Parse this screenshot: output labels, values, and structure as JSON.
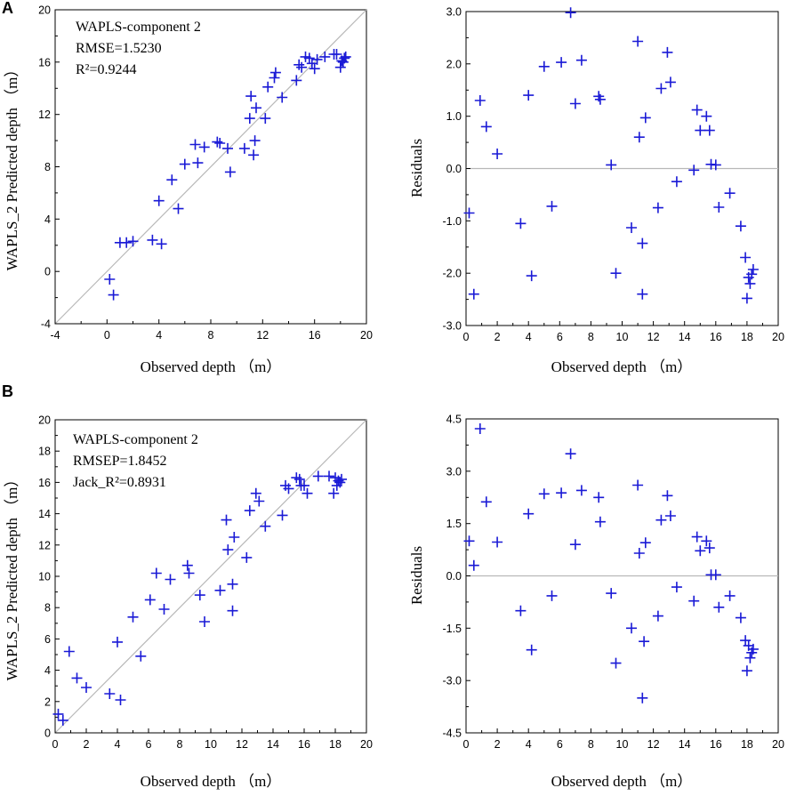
{
  "panel_labels": [
    "A",
    "B"
  ],
  "chart_data": [
    {
      "id": "A-left",
      "type": "scatter",
      "panel": "A",
      "xlabel": "Observed depth （m）",
      "ylabel": "WAPLS_2 Predicted depth （m）",
      "xlim": [
        -4,
        20
      ],
      "ylim": [
        -4,
        20
      ],
      "xticks": [
        "-4",
        "0",
        "4",
        "8",
        "12",
        "16",
        "20"
      ],
      "yticks": [
        "-4",
        "0",
        "4",
        "8",
        "12",
        "16",
        "20"
      ],
      "xtick_values": [
        -4,
        0,
        4,
        8,
        12,
        16,
        20
      ],
      "ytick_values": [
        -4,
        0,
        4,
        8,
        12,
        16,
        20
      ],
      "reference_line": "1:1",
      "annotations": [
        "WAPLS-component 2",
        "RMSE=1.5230",
        "R²=0.9244"
      ],
      "marker_color": "#1a1ad6",
      "points": [
        [
          0.2,
          -0.6
        ],
        [
          0.5,
          -1.8
        ],
        [
          1.0,
          2.2
        ],
        [
          1.5,
          2.2
        ],
        [
          2.0,
          2.3
        ],
        [
          3.5,
          2.4
        ],
        [
          4.0,
          5.4
        ],
        [
          4.2,
          2.1
        ],
        [
          5.0,
          7.0
        ],
        [
          5.5,
          4.8
        ],
        [
          6.0,
          8.2
        ],
        [
          6.8,
          9.7
        ],
        [
          7.0,
          8.3
        ],
        [
          7.5,
          9.5
        ],
        [
          8.5,
          9.9
        ],
        [
          8.7,
          9.8
        ],
        [
          9.3,
          9.4
        ],
        [
          9.5,
          7.6
        ],
        [
          10.6,
          9.4
        ],
        [
          11.0,
          11.7
        ],
        [
          11.1,
          13.4
        ],
        [
          11.3,
          8.9
        ],
        [
          11.4,
          10.0
        ],
        [
          11.5,
          12.5
        ],
        [
          12.2,
          11.7
        ],
        [
          12.4,
          14.1
        ],
        [
          12.9,
          14.8
        ],
        [
          13.0,
          15.2
        ],
        [
          13.5,
          13.3
        ],
        [
          14.6,
          14.6
        ],
        [
          14.8,
          15.8
        ],
        [
          15.0,
          15.6
        ],
        [
          15.3,
          16.4
        ],
        [
          15.6,
          16.3
        ],
        [
          15.8,
          15.9
        ],
        [
          16.0,
          15.5
        ],
        [
          16.2,
          16.2
        ],
        [
          16.8,
          16.4
        ],
        [
          17.5,
          16.6
        ],
        [
          17.7,
          16.6
        ],
        [
          18.0,
          15.6
        ],
        [
          18.1,
          16.1
        ],
        [
          18.2,
          16.0
        ],
        [
          18.3,
          16.3
        ],
        [
          18.4,
          16.4
        ]
      ]
    },
    {
      "id": "A-right",
      "type": "scatter",
      "panel": "A",
      "xlabel": "Observed depth （m）",
      "ylabel": "Residuals",
      "xlim": [
        0,
        20
      ],
      "ylim": [
        -3,
        3
      ],
      "xticks": [
        "0",
        "2",
        "4",
        "6",
        "8",
        "10",
        "12",
        "14",
        "16",
        "18",
        "20"
      ],
      "yticks": [
        "-3.0",
        "-2.0",
        "-1.0",
        "0.0",
        "1.0",
        "2.0",
        "3.0"
      ],
      "xtick_values": [
        0,
        2,
        4,
        6,
        8,
        10,
        12,
        14,
        16,
        18,
        20
      ],
      "ytick_values": [
        -3,
        -2,
        -1,
        0,
        1,
        2,
        3
      ],
      "reference_line": "y=0",
      "marker_color": "#1a1ad6",
      "points": [
        [
          0.2,
          -0.85
        ],
        [
          0.5,
          -2.4
        ],
        [
          0.9,
          1.3
        ],
        [
          1.3,
          0.8
        ],
        [
          2.0,
          0.28
        ],
        [
          3.5,
          -1.05
        ],
        [
          4.0,
          1.4
        ],
        [
          4.2,
          -2.05
        ],
        [
          5.0,
          1.95
        ],
        [
          5.5,
          -0.72
        ],
        [
          6.1,
          2.03
        ],
        [
          6.7,
          2.98
        ],
        [
          7.0,
          1.24
        ],
        [
          7.4,
          2.07
        ],
        [
          8.5,
          1.38
        ],
        [
          8.6,
          1.32
        ],
        [
          9.3,
          0.07
        ],
        [
          9.6,
          -2.0
        ],
        [
          10.6,
          -1.13
        ],
        [
          11.0,
          2.43
        ],
        [
          11.1,
          0.6
        ],
        [
          11.3,
          -2.4
        ],
        [
          11.3,
          -1.43
        ],
        [
          11.5,
          0.97
        ],
        [
          12.3,
          -0.75
        ],
        [
          12.5,
          1.53
        ],
        [
          12.9,
          2.22
        ],
        [
          13.1,
          1.65
        ],
        [
          13.5,
          -0.25
        ],
        [
          14.6,
          -0.03
        ],
        [
          14.8,
          1.12
        ],
        [
          15.0,
          0.73
        ],
        [
          15.4,
          1.0
        ],
        [
          15.6,
          0.73
        ],
        [
          15.7,
          0.08
        ],
        [
          16.0,
          0.07
        ],
        [
          16.2,
          -0.74
        ],
        [
          16.9,
          -0.47
        ],
        [
          17.6,
          -1.1
        ],
        [
          17.9,
          -1.7
        ],
        [
          18.0,
          -2.48
        ],
        [
          18.1,
          -2.08
        ],
        [
          18.2,
          -2.2
        ],
        [
          18.3,
          -2.02
        ],
        [
          18.4,
          -1.93
        ]
      ]
    },
    {
      "id": "B-left",
      "type": "scatter",
      "panel": "B",
      "xlabel": "Observed depth （m）",
      "ylabel": "WAPLS_2 Predicted depth （m）",
      "xlim": [
        0,
        20
      ],
      "ylim": [
        0,
        20
      ],
      "xticks": [
        "0",
        "2",
        "4",
        "6",
        "8",
        "10",
        "12",
        "14",
        "16",
        "18",
        "20"
      ],
      "yticks": [
        "0",
        "2",
        "4",
        "6",
        "8",
        "10",
        "12",
        "14",
        "16",
        "18",
        "20"
      ],
      "xtick_values": [
        0,
        2,
        4,
        6,
        8,
        10,
        12,
        14,
        16,
        18,
        20
      ],
      "ytick_values": [
        0,
        2,
        4,
        6,
        8,
        10,
        12,
        14,
        16,
        18,
        20
      ],
      "reference_line": "1:1",
      "annotations": [
        "WAPLS-component 2",
        "RMSEP=1.8452",
        "Jack_R²=0.8931"
      ],
      "marker_color": "#1a1ad6",
      "points": [
        [
          0.2,
          1.2
        ],
        [
          0.5,
          0.8
        ],
        [
          0.9,
          5.2
        ],
        [
          1.4,
          3.5
        ],
        [
          2.0,
          2.9
        ],
        [
          3.5,
          2.5
        ],
        [
          4.0,
          5.8
        ],
        [
          4.2,
          2.1
        ],
        [
          5.0,
          7.4
        ],
        [
          5.5,
          4.9
        ],
        [
          6.1,
          8.5
        ],
        [
          6.5,
          10.2
        ],
        [
          7.0,
          7.9
        ],
        [
          7.4,
          9.8
        ],
        [
          8.5,
          10.7
        ],
        [
          8.6,
          10.2
        ],
        [
          9.3,
          8.8
        ],
        [
          9.6,
          7.1
        ],
        [
          10.6,
          9.1
        ],
        [
          11.0,
          13.6
        ],
        [
          11.1,
          11.7
        ],
        [
          11.4,
          9.5
        ],
        [
          11.5,
          12.5
        ],
        [
          11.4,
          7.8
        ],
        [
          12.3,
          11.2
        ],
        [
          12.5,
          14.2
        ],
        [
          12.9,
          15.3
        ],
        [
          13.1,
          14.8
        ],
        [
          13.5,
          13.2
        ],
        [
          14.6,
          13.9
        ],
        [
          14.8,
          15.8
        ],
        [
          15.0,
          15.6
        ],
        [
          15.5,
          16.3
        ],
        [
          15.7,
          16.2
        ],
        [
          15.8,
          15.8
        ],
        [
          16.0,
          15.8
        ],
        [
          16.2,
          15.3
        ],
        [
          16.9,
          16.4
        ],
        [
          17.6,
          16.4
        ],
        [
          17.9,
          15.3
        ],
        [
          18.0,
          16.3
        ],
        [
          18.1,
          15.8
        ],
        [
          18.2,
          16.1
        ],
        [
          18.3,
          16.0
        ],
        [
          18.4,
          16.2
        ]
      ]
    },
    {
      "id": "B-right",
      "type": "scatter",
      "panel": "B",
      "xlabel": "Observed depth （m）",
      "ylabel": "Residuals",
      "xlim": [
        0,
        20
      ],
      "ylim": [
        -4.5,
        4.5
      ],
      "xticks": [
        "0",
        "2",
        "4",
        "6",
        "8",
        "10",
        "12",
        "14",
        "16",
        "18",
        "20"
      ],
      "yticks": [
        "-4.5",
        "-3.0",
        "-1.5",
        "0.0",
        "1.5",
        "3.0",
        "4.5"
      ],
      "xtick_values": [
        0,
        2,
        4,
        6,
        8,
        10,
        12,
        14,
        16,
        18,
        20
      ],
      "ytick_values": [
        -4.5,
        -3,
        -1.5,
        0,
        1.5,
        3,
        4.5
      ],
      "reference_line": "y=0",
      "marker_color": "#1a1ad6",
      "points": [
        [
          0.2,
          1.0
        ],
        [
          0.5,
          0.3
        ],
        [
          0.9,
          4.22
        ],
        [
          1.3,
          2.12
        ],
        [
          2.0,
          0.97
        ],
        [
          3.5,
          -1.0
        ],
        [
          4.0,
          1.78
        ],
        [
          4.2,
          -2.12
        ],
        [
          5.0,
          2.35
        ],
        [
          5.5,
          -0.57
        ],
        [
          6.1,
          2.38
        ],
        [
          6.7,
          3.5
        ],
        [
          7.0,
          0.9
        ],
        [
          7.4,
          2.45
        ],
        [
          8.5,
          2.25
        ],
        [
          8.6,
          1.55
        ],
        [
          9.3,
          -0.5
        ],
        [
          9.6,
          -2.5
        ],
        [
          10.6,
          -1.5
        ],
        [
          11.0,
          2.6
        ],
        [
          11.1,
          0.65
        ],
        [
          11.4,
          -1.88
        ],
        [
          11.3,
          -3.5
        ],
        [
          11.5,
          0.95
        ],
        [
          12.3,
          -1.15
        ],
        [
          12.5,
          1.6
        ],
        [
          12.9,
          2.3
        ],
        [
          13.1,
          1.72
        ],
        [
          13.5,
          -0.32
        ],
        [
          14.6,
          -0.72
        ],
        [
          14.8,
          1.12
        ],
        [
          15.0,
          0.72
        ],
        [
          15.4,
          1.0
        ],
        [
          15.6,
          0.8
        ],
        [
          15.7,
          0.03
        ],
        [
          16.0,
          0.03
        ],
        [
          16.2,
          -0.9
        ],
        [
          16.9,
          -0.57
        ],
        [
          17.6,
          -1.2
        ],
        [
          17.9,
          -1.85
        ],
        [
          18.0,
          -2.72
        ],
        [
          18.1,
          -2.0
        ],
        [
          18.2,
          -2.35
        ],
        [
          18.3,
          -2.2
        ],
        [
          18.4,
          -2.1
        ]
      ]
    }
  ]
}
